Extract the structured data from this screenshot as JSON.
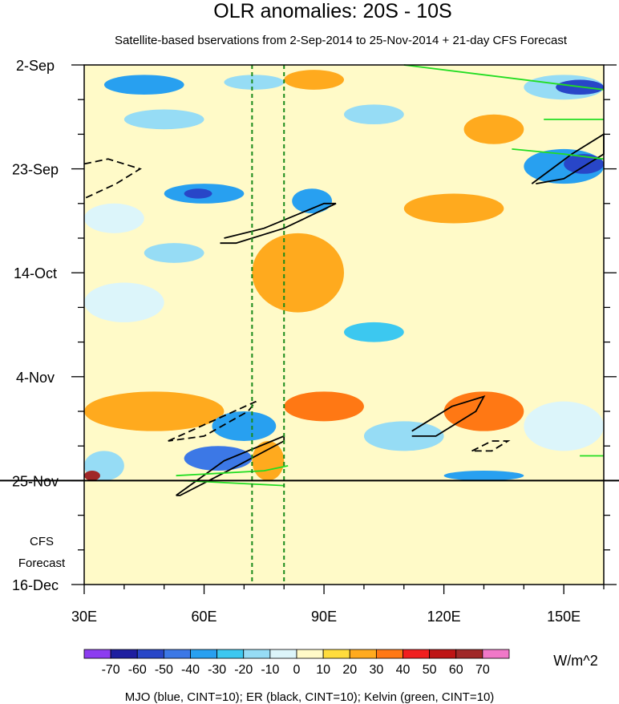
{
  "chart_data": {
    "type": "heatmap",
    "title": "OLR anomalies: 20S - 10S",
    "subtitle": "Satellite-based bservations from 2-Sep-2014 to 25-Nov-2014 + 21-day CFS Forecast",
    "x_axis": {
      "range": [
        30,
        160
      ],
      "ticks": [
        {
          "value": 30,
          "label": "30E"
        },
        {
          "value": 60,
          "label": "60E"
        },
        {
          "value": 90,
          "label": "90E"
        },
        {
          "value": 120,
          "label": "120E"
        },
        {
          "value": 150,
          "label": "150E"
        }
      ],
      "minor_step": 10
    },
    "y_axis": {
      "range_days": [
        0,
        105
      ],
      "ticks": [
        {
          "day": 0,
          "label": "2-Sep"
        },
        {
          "day": 21,
          "label": "23-Sep"
        },
        {
          "day": 42,
          "label": "14-Oct"
        },
        {
          "day": 63,
          "label": "4-Nov"
        },
        {
          "day": 84,
          "label": "25-Nov"
        },
        {
          "day": 105,
          "label": "16-Dec"
        }
      ],
      "minor_step_days": 7
    },
    "observation_end_day": 84,
    "forecast_label": [
      "CFS",
      "Forecast"
    ],
    "reference_lines_lon": [
      72,
      80
    ],
    "colorbar": {
      "levels": [
        -70,
        -60,
        -50,
        -40,
        -30,
        -20,
        -10,
        0,
        10,
        20,
        30,
        40,
        50,
        60,
        70
      ],
      "colors": [
        "#8c3cf0",
        "#1e1ea0",
        "#2846c8",
        "#3c78e6",
        "#28a0f0",
        "#3cc8f0",
        "#96dcf5",
        "#dcf5fa",
        "#fffac8",
        "#ffdc3c",
        "#ffaa1e",
        "#ff7814",
        "#f01e1e",
        "#be1414",
        "#a02828",
        "#f078c8"
      ],
      "units": "W/m^2"
    },
    "heatmap_cells": [
      {
        "lon": [
          30,
          160
        ],
        "day": [
          0,
          84
        ],
        "value": 5
      },
      {
        "lon": [
          35,
          55
        ],
        "day": [
          2,
          6
        ],
        "value": -40
      },
      {
        "lon": [
          65,
          80
        ],
        "day": [
          2,
          5
        ],
        "value": -20
      },
      {
        "lon": [
          80,
          95
        ],
        "day": [
          1,
          5
        ],
        "value": 20
      },
      {
        "lon": [
          140,
          160
        ],
        "day": [
          2,
          7
        ],
        "value": -20
      },
      {
        "lon": [
          148,
          160
        ],
        "day": [
          3,
          6
        ],
        "value": -60
      },
      {
        "lon": [
          40,
          60
        ],
        "day": [
          9,
          13
        ],
        "value": -20
      },
      {
        "lon": [
          95,
          110
        ],
        "day": [
          8,
          12
        ],
        "value": -15
      },
      {
        "lon": [
          125,
          140
        ],
        "day": [
          10,
          16
        ],
        "value": 20
      },
      {
        "lon": [
          140,
          160
        ],
        "day": [
          17,
          24
        ],
        "value": -40
      },
      {
        "lon": [
          150,
          160
        ],
        "day": [
          18,
          22
        ],
        "value": -60
      },
      {
        "lon": [
          50,
          70
        ],
        "day": [
          24,
          28
        ],
        "value": -40
      },
      {
        "lon": [
          55,
          62
        ],
        "day": [
          25,
          27
        ],
        "value": -60
      },
      {
        "lon": [
          82,
          92
        ],
        "day": [
          25,
          30
        ],
        "value": -40
      },
      {
        "lon": [
          30,
          45
        ],
        "day": [
          28,
          34
        ],
        "value": -10
      },
      {
        "lon": [
          72,
          95
        ],
        "day": [
          34,
          50
        ],
        "value": 20
      },
      {
        "lon": [
          110,
          135
        ],
        "day": [
          26,
          32
        ],
        "value": 25
      },
      {
        "lon": [
          45,
          60
        ],
        "day": [
          36,
          40
        ],
        "value": -20
      },
      {
        "lon": [
          95,
          110
        ],
        "day": [
          52,
          56
        ],
        "value": -30
      },
      {
        "lon": [
          30,
          50
        ],
        "day": [
          44,
          52
        ],
        "value": -10
      },
      {
        "lon": [
          30,
          65
        ],
        "day": [
          66,
          74
        ],
        "value": 20
      },
      {
        "lon": [
          62,
          78
        ],
        "day": [
          70,
          76
        ],
        "value": -40
      },
      {
        "lon": [
          72,
          80
        ],
        "day": [
          76,
          84
        ],
        "value": 20
      },
      {
        "lon": [
          80,
          100
        ],
        "day": [
          66,
          72
        ],
        "value": 30
      },
      {
        "lon": [
          100,
          120
        ],
        "day": [
          72,
          78
        ],
        "value": -20
      },
      {
        "lon": [
          120,
          140
        ],
        "day": [
          66,
          74
        ],
        "value": 30
      },
      {
        "lon": [
          140,
          160
        ],
        "day": [
          68,
          78
        ],
        "value": -10
      },
      {
        "lon": [
          30,
          40
        ],
        "day": [
          78,
          84
        ],
        "value": -20
      },
      {
        "lon": [
          30,
          34
        ],
        "day": [
          82,
          84
        ],
        "value": 60
      },
      {
        "lon": [
          55,
          72
        ],
        "day": [
          77,
          82
        ],
        "value": -50
      },
      {
        "lon": [
          120,
          140
        ],
        "day": [
          82,
          84
        ],
        "value": -40
      },
      {
        "lon": [
          30,
          160
        ],
        "day": [
          84,
          105
        ],
        "value": 5
      }
    ],
    "contours": {
      "MJO (blue, CINT=10)": [],
      "ER (black, CINT=10)": [
        {
          "points": [
            [
              30,
              20
            ],
            [
              36,
              19
            ],
            [
              44,
              21
            ],
            [
              38,
              24
            ],
            [
              30,
              27
            ]
          ],
          "dashed": true
        },
        {
          "points": [
            [
              65,
              35
            ],
            [
              75,
              33
            ],
            [
              90,
              28
            ],
            [
              93,
              28
            ],
            [
              80,
              33
            ],
            [
              68,
              36
            ],
            [
              64,
              36
            ]
          ],
          "dashed": false
        },
        {
          "points": [
            [
              51,
              76
            ],
            [
              62,
              72
            ],
            [
              73,
              68
            ],
            [
              71,
              70
            ],
            [
              60,
              75
            ],
            [
              51,
              76
            ]
          ],
          "dashed": true
        },
        {
          "points": [
            [
              53,
              87
            ],
            [
              65,
              80
            ],
            [
              80,
              75
            ],
            [
              80,
              76
            ],
            [
              66,
              82
            ],
            [
              54,
              87
            ],
            [
              53,
              87
            ]
          ],
          "dashed": false
        },
        {
          "points": [
            [
              112,
              74
            ],
            [
              122,
              69
            ],
            [
              130,
              67
            ],
            [
              128,
              70
            ],
            [
              118,
              75
            ],
            [
              112,
              75
            ]
          ],
          "dashed": false
        },
        {
          "points": [
            [
              127,
              78
            ],
            [
              132,
              76
            ],
            [
              136,
              76
            ],
            [
              132,
              78
            ],
            [
              127,
              78
            ]
          ],
          "dashed": true
        },
        {
          "points": [
            [
              142,
              24
            ],
            [
              152,
              18
            ],
            [
              160,
              14
            ],
            [
              160,
              18
            ],
            [
              150,
              23
            ],
            [
              143,
              24
            ]
          ],
          "dashed": false
        }
      ],
      "Kelvin (green, CINT=10)": [
        {
          "points": [
            [
              110,
              0
            ],
            [
              130,
              2
            ],
            [
              150,
              4
            ],
            [
              160,
              5
            ]
          ],
          "dashed": false
        },
        {
          "points": [
            [
              145,
              11
            ],
            [
              160,
              11
            ]
          ],
          "dashed": false
        },
        {
          "points": [
            [
              137,
              17
            ],
            [
              150,
              18
            ],
            [
              160,
              19
            ]
          ],
          "dashed": false
        },
        {
          "points": [
            [
              53,
              83
            ],
            [
              75,
              82
            ],
            [
              81,
              81
            ]
          ],
          "dashed": false
        },
        {
          "points": [
            [
              55,
              84
            ],
            [
              80,
              85
            ]
          ],
          "dashed": false
        },
        {
          "points": [
            [
              154,
              79
            ],
            [
              160,
              79
            ]
          ],
          "dashed": false
        }
      ]
    },
    "footer_legend": "MJO (blue, CINT=10); ER (black, CINT=10); Kelvin (green, CINT=10)"
  }
}
